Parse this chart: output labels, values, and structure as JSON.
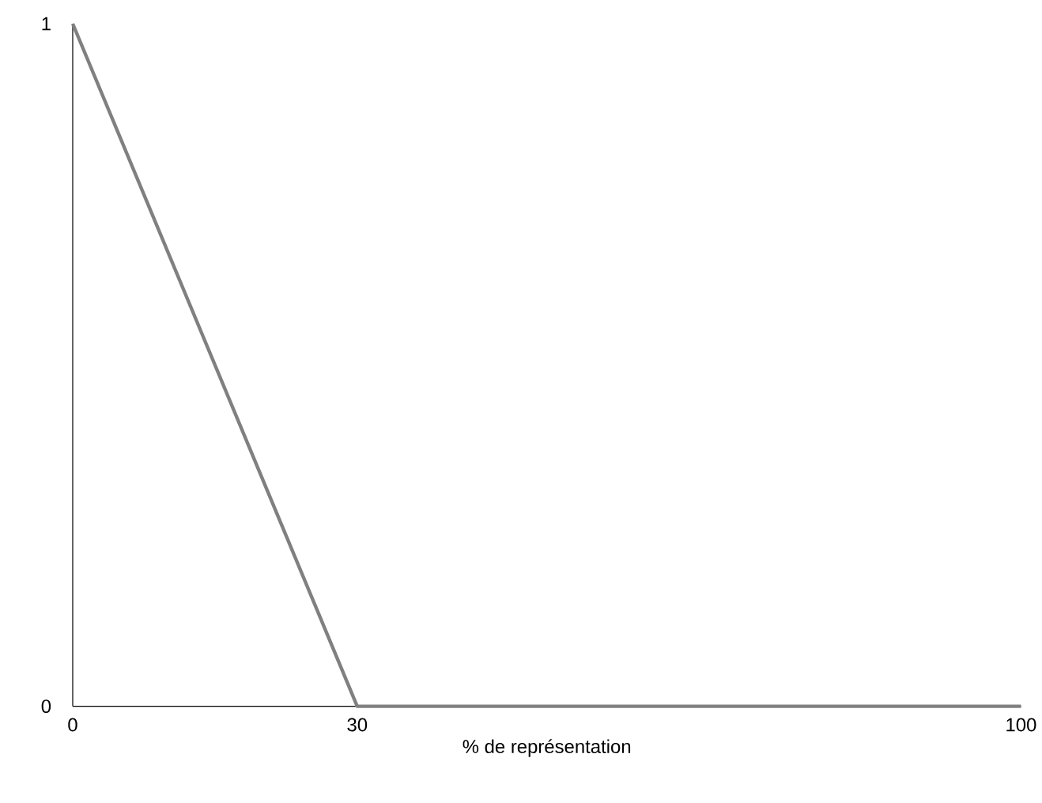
{
  "chart_data": {
    "type": "line",
    "xlabel": "% de représentation",
    "x": [
      0,
      30,
      100
    ],
    "series": [
      {
        "color": "#808080",
        "values": [
          1,
          0,
          0
        ]
      }
    ],
    "xlim": [
      0,
      100
    ],
    "ylim": [
      0,
      1
    ],
    "xticks": [
      0,
      30,
      100
    ],
    "yticks": [
      0,
      1
    ],
    "grid": false,
    "marker": "none",
    "line_style": "solid"
  }
}
